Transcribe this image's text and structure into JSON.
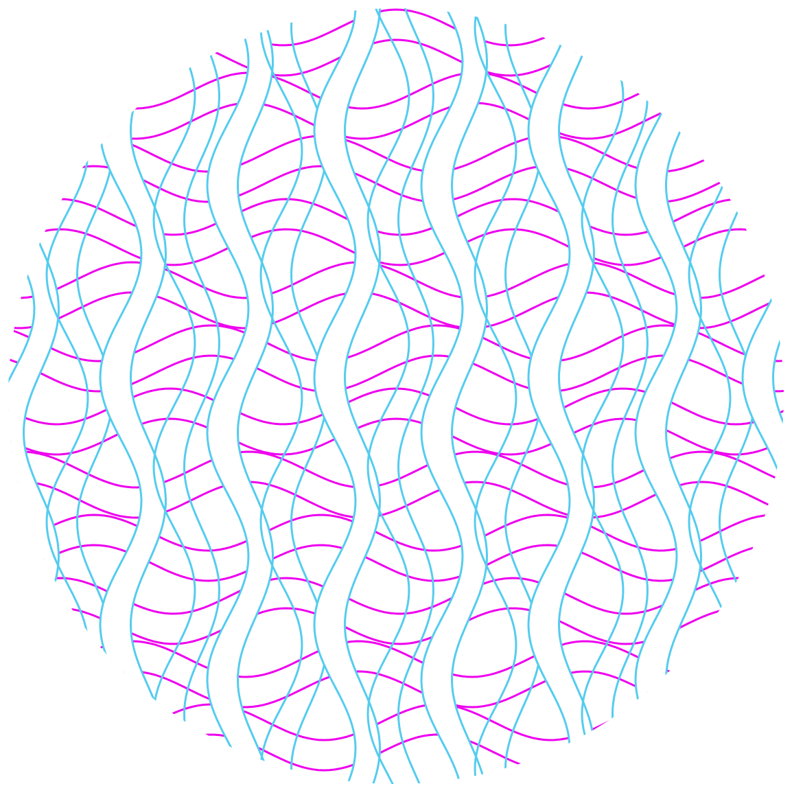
{
  "image": {
    "background_color": "#ffffff",
    "subject": "circular-woven-lattice",
    "colors": {
      "horizontal_strands": "#ee00ee",
      "vertical_strands": "#55ccee"
    }
  }
}
